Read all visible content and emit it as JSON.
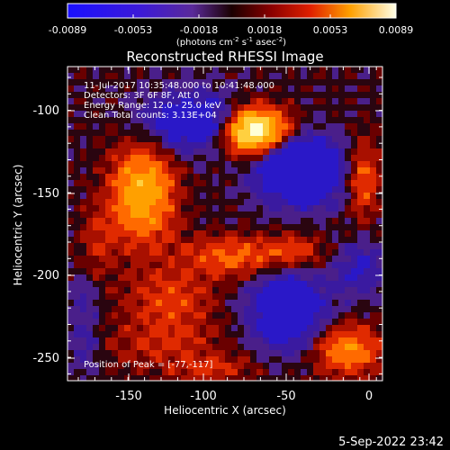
{
  "colorbar": {
    "ticks": [
      "-0.0089",
      "-0.0053",
      "-0.0018",
      "0.0018",
      "0.0053",
      "0.0089"
    ],
    "units_main": "(photons cm",
    "units_sup1": "-2",
    "units_mid": " s",
    "units_sup2": "-1",
    "units_end": " asec",
    "units_sup3": "-2",
    "units_close": ")"
  },
  "title": "Reconstructed RHESSI Image",
  "annotations": {
    "line1": "11-Jul-2017 10:35:48.000 to 10:41:48.000",
    "line2": "Detectors: 3F 6F 8F, Att 0",
    "line3": "Energy Range: 12.0 - 25.0 keV",
    "line4": "Clean    Total counts: 3.13E+04",
    "peak": "Position of Peak = [-77,-117]"
  },
  "axes": {
    "xlabel": "Heliocentric X (arcsec)",
    "ylabel": "Heliocentric Y (arcsec)",
    "xticks": [
      "-150",
      "-100",
      "-50",
      "0"
    ],
    "yticks": [
      "-100",
      "-150",
      "-200",
      "-250"
    ]
  },
  "footer": {
    "date": "5-Sep-2022 23:42"
  }
}
